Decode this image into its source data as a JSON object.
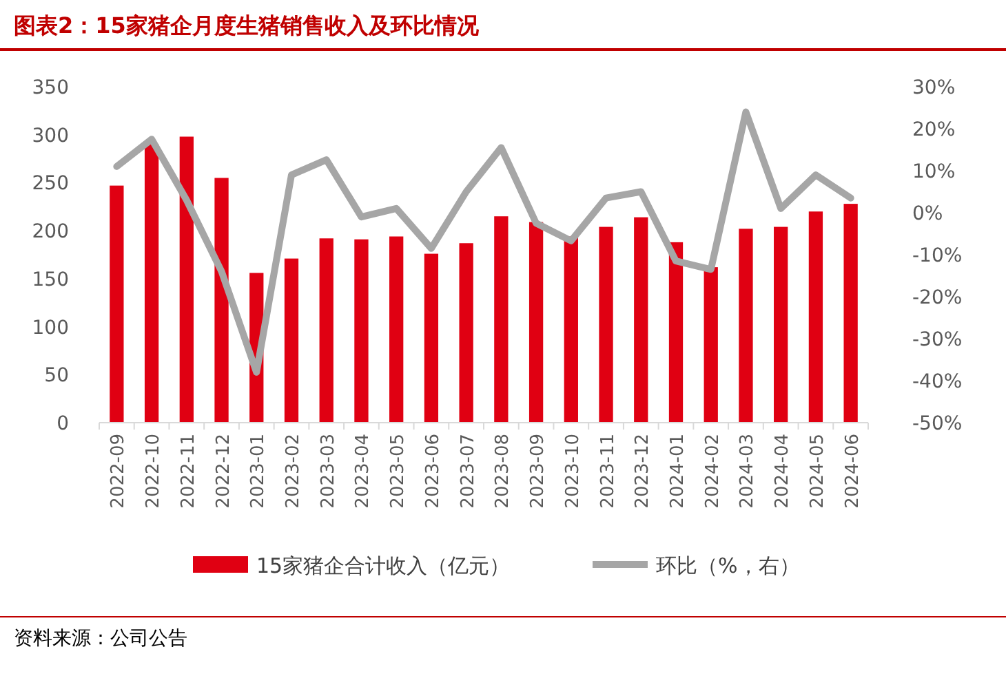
{
  "chart_data": {
    "type": "bar",
    "title": "图表2：15家猪企月度生猪销售收入及环比情况",
    "categories": [
      "2022-09",
      "2022-10",
      "2022-11",
      "2022-12",
      "2023-01",
      "2023-02",
      "2023-03",
      "2023-04",
      "2023-05",
      "2023-06",
      "2023-07",
      "2023-08",
      "2023-09",
      "2023-10",
      "2023-11",
      "2023-12",
      "2024-01",
      "2024-02",
      "2024-03",
      "2024-04",
      "2024-05",
      "2024-06"
    ],
    "series": [
      {
        "name": "15家猪企合计收入（亿元）",
        "color": "#e00012",
        "values": [
          247,
          290,
          298,
          255,
          156,
          171,
          192,
          191,
          194,
          176,
          187,
          215,
          209,
          194,
          204,
          214,
          188,
          162,
          202,
          204,
          220,
          228
        ]
      },
      {
        "name": "环比（%，右）",
        "color": "#a6a6a6",
        "type": "line",
        "axis": "y2",
        "values": [
          11,
          17.5,
          3,
          -14,
          -38,
          9,
          12.6,
          -1,
          1,
          -8.5,
          5,
          15.5,
          -2.5,
          -6.7,
          3.5,
          5,
          -11.5,
          -13.5,
          24,
          1,
          9,
          3.5
        ]
      }
    ],
    "ylim": [
      0,
      350
    ],
    "yticks": [
      0,
      50,
      100,
      150,
      200,
      250,
      300,
      350
    ],
    "y2lim": [
      -50,
      30
    ],
    "y2ticks": [
      {
        "value": -50,
        "label": "-50%"
      },
      {
        "value": -40,
        "label": "-40%"
      },
      {
        "value": -30,
        "label": "-30%"
      },
      {
        "value": -20,
        "label": "-20%"
      },
      {
        "value": -10,
        "label": "-10%"
      },
      {
        "value": 0,
        "label": "0%"
      },
      {
        "value": 10,
        "label": "10%"
      },
      {
        "value": 20,
        "label": "20%"
      },
      {
        "value": 30,
        "label": "30%"
      }
    ],
    "legend": "bottom",
    "grid": false,
    "marker": "none",
    "line_style": "solid",
    "annotations": [
      "资料来源：公司公告"
    ]
  }
}
